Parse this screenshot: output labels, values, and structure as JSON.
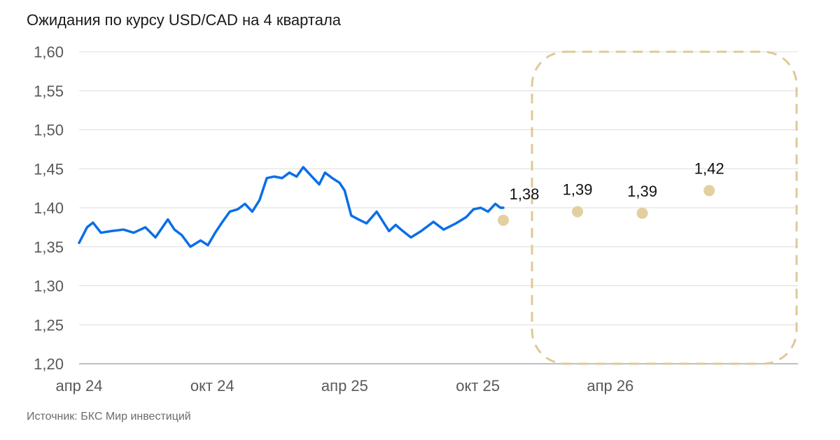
{
  "title": "Ожидания по курсу USD/CAD на 4 квартала",
  "source": "Источник: БКС Мир инвестиций",
  "colors": {
    "actual_line": "#0a6ee8",
    "forecast": "#e3cfa0",
    "forecast_box": "#e0c896",
    "grid": "#dcdcdc",
    "axis": "#bfbfbf"
  },
  "chart_data": {
    "type": "line",
    "ylim": [
      1.2,
      1.6
    ],
    "xlim": [
      "2024-04-01",
      "2026-12-15"
    ],
    "y_ticks": [
      {
        "value": 1.6,
        "label": "1,60"
      },
      {
        "value": 1.55,
        "label": "1,55"
      },
      {
        "value": 1.5,
        "label": "1,50"
      },
      {
        "value": 1.45,
        "label": "1,45"
      },
      {
        "value": 1.4,
        "label": "1,40"
      },
      {
        "value": 1.35,
        "label": "1,35"
      },
      {
        "value": 1.3,
        "label": "1,30"
      },
      {
        "value": 1.25,
        "label": "1,25"
      },
      {
        "value": 1.2,
        "label": "1,20"
      }
    ],
    "x_ticks": [
      {
        "date": "2024-04-01",
        "label": "апр 24"
      },
      {
        "date": "2024-10-01",
        "label": "окт 24"
      },
      {
        "date": "2025-04-01",
        "label": "апр 25"
      },
      {
        "date": "2025-10-01",
        "label": "окт 25"
      },
      {
        "date": "2026-04-01",
        "label": "апр 26"
      }
    ],
    "grid": true,
    "series": [
      {
        "kind": "line",
        "x": [
          "2024-04-01",
          "2024-04-12",
          "2024-04-20",
          "2024-05-01",
          "2024-05-15",
          "2024-06-01",
          "2024-06-15",
          "2024-07-01",
          "2024-07-15",
          "2024-08-01",
          "2024-08-10",
          "2024-08-20",
          "2024-09-01",
          "2024-09-15",
          "2024-09-25",
          "2024-10-05",
          "2024-10-15",
          "2024-10-25",
          "2024-11-05",
          "2024-11-15",
          "2024-11-25",
          "2024-12-05",
          "2024-12-15",
          "2024-12-25",
          "2025-01-05",
          "2025-01-15",
          "2025-01-25",
          "2025-02-03",
          "2025-02-15",
          "2025-02-25",
          "2025-03-05",
          "2025-03-15",
          "2025-03-25",
          "2025-04-01",
          "2025-04-10",
          "2025-04-20",
          "2025-05-01",
          "2025-05-15",
          "2025-06-01",
          "2025-06-10",
          "2025-06-20",
          "2025-07-01",
          "2025-07-15",
          "2025-08-01",
          "2025-08-15",
          "2025-09-01",
          "2025-09-15",
          "2025-09-25",
          "2025-10-05",
          "2025-10-15",
          "2025-10-25",
          "2025-11-01",
          "2025-11-05"
        ],
        "y": [
          1.355,
          1.375,
          1.381,
          1.368,
          1.37,
          1.372,
          1.368,
          1.375,
          1.362,
          1.385,
          1.372,
          1.365,
          1.35,
          1.358,
          1.352,
          1.368,
          1.382,
          1.395,
          1.398,
          1.405,
          1.395,
          1.41,
          1.438,
          1.44,
          1.438,
          1.445,
          1.44,
          1.452,
          1.44,
          1.43,
          1.445,
          1.438,
          1.432,
          1.422,
          1.39,
          1.385,
          1.38,
          1.395,
          1.37,
          1.378,
          1.37,
          1.362,
          1.37,
          1.382,
          1.372,
          1.38,
          1.388,
          1.398,
          1.4,
          1.395,
          1.405,
          1.4,
          1.4
        ]
      },
      {
        "kind": "scatter",
        "x": [
          "2025-11-05",
          "2026-02-15",
          "2026-05-15",
          "2026-08-15"
        ],
        "y": [
          1.384,
          1.395,
          1.393,
          1.422
        ],
        "labels": [
          "1,38",
          "1,39",
          "1,39",
          "1,42"
        ]
      }
    ]
  }
}
